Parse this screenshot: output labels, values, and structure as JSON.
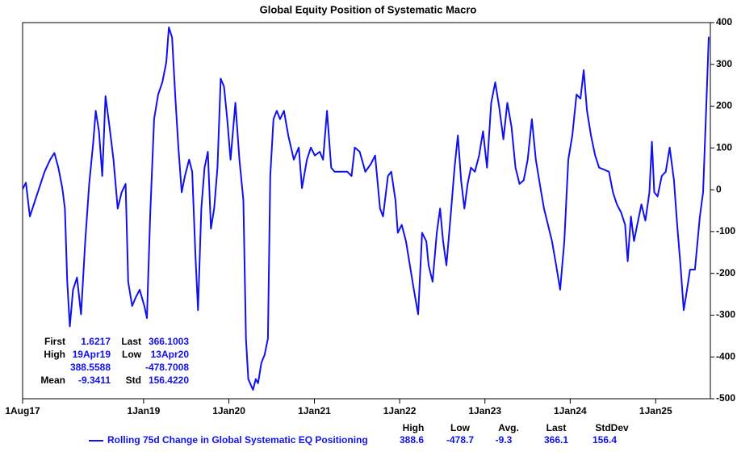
{
  "chart_data": {
    "type": "line",
    "title": "Global Equity Position of Systematic Macro",
    "x": [
      "2017-08-01",
      "2017-08-15",
      "2017-09-01",
      "2017-09-29",
      "2017-11-03",
      "2017-11-27",
      "2017-12-15",
      "2018-01-01",
      "2018-01-18",
      "2018-01-29",
      "2018-02-08",
      "2018-02-19",
      "2018-03-05",
      "2018-03-22",
      "2018-04-08",
      "2018-04-26",
      "2018-05-13",
      "2018-05-30",
      "2018-06-10",
      "2018-06-24",
      "2018-07-08",
      "2018-07-22",
      "2018-08-08",
      "2018-08-25",
      "2018-09-12",
      "2018-09-29",
      "2018-10-16",
      "2018-10-27",
      "2018-11-13",
      "2018-11-27",
      "2018-12-15",
      "2019-01-04",
      "2019-01-15",
      "2019-01-29",
      "2019-02-15",
      "2019-03-04",
      "2019-03-22",
      "2019-04-08",
      "2019-04-19",
      "2019-05-03",
      "2019-05-16",
      "2019-05-30",
      "2019-06-13",
      "2019-06-27",
      "2019-07-15",
      "2019-07-28",
      "2019-08-11",
      "2019-08-22",
      "2019-09-05",
      "2019-09-19",
      "2019-10-03",
      "2019-10-16",
      "2019-10-30",
      "2019-11-13",
      "2019-11-27",
      "2019-12-11",
      "2019-12-25",
      "2020-01-08",
      "2020-01-29",
      "2020-02-15",
      "2020-03-03",
      "2020-03-14",
      "2020-03-24",
      "2020-04-13",
      "2020-04-25",
      "2020-05-05",
      "2020-05-19",
      "2020-06-02",
      "2020-06-16",
      "2020-06-26",
      "2020-07-10",
      "2020-07-24",
      "2020-08-07",
      "2020-08-24",
      "2020-09-11",
      "2020-10-05",
      "2020-10-26",
      "2020-11-09",
      "2020-11-30",
      "2020-12-17",
      "2021-01-03",
      "2021-01-24",
      "2021-02-07",
      "2021-02-24",
      "2021-03-14",
      "2021-03-28",
      "2021-04-25",
      "2021-05-22",
      "2021-06-09",
      "2021-06-23",
      "2021-07-14",
      "2021-08-07",
      "2021-08-31",
      "2021-09-18",
      "2021-10-09",
      "2021-10-22",
      "2021-11-12",
      "2021-11-26",
      "2021-12-14",
      "2021-12-24",
      "2022-01-10",
      "2022-01-28",
      "2022-02-14",
      "2022-03-03",
      "2022-03-21",
      "2022-04-07",
      "2022-04-25",
      "2022-05-05",
      "2022-05-22",
      "2022-06-09",
      "2022-06-23",
      "2022-07-06",
      "2022-07-20",
      "2022-08-07",
      "2022-08-24",
      "2022-09-07",
      "2022-09-21",
      "2022-10-05",
      "2022-10-19",
      "2022-11-02",
      "2022-11-19",
      "2022-12-07",
      "2022-12-24",
      "2023-01-10",
      "2023-01-28",
      "2023-02-14",
      "2023-03-03",
      "2023-03-21",
      "2023-04-07",
      "2023-04-25",
      "2023-05-12",
      "2023-05-29",
      "2023-06-16",
      "2023-07-03",
      "2023-07-21",
      "2023-08-07",
      "2023-08-24",
      "2023-09-11",
      "2023-09-28",
      "2023-10-15",
      "2023-11-02",
      "2023-11-19",
      "2023-12-07",
      "2023-12-24",
      "2024-01-10",
      "2024-01-28",
      "2024-02-14",
      "2024-02-28",
      "2024-03-13",
      "2024-03-30",
      "2024-04-17",
      "2024-05-04",
      "2024-05-21",
      "2024-06-15",
      "2024-07-02",
      "2024-07-19",
      "2024-08-06",
      "2024-08-23",
      "2024-09-03",
      "2024-09-17",
      "2024-09-30",
      "2024-10-14",
      "2024-11-01",
      "2024-11-18",
      "2024-12-05",
      "2024-12-16",
      "2024-12-26",
      "2025-01-09",
      "2025-01-27",
      "2025-02-13",
      "2025-03-02",
      "2025-03-20",
      "2025-04-03",
      "2025-04-17",
      "2025-05-01",
      "2025-05-15",
      "2025-05-28",
      "2025-06-18",
      "2025-07-09",
      "2025-07-23",
      "2025-08-06",
      "2025-08-16"
    ],
    "series": [
      {
        "name": "Rolling 75d Change in Global Systematic EQ Positioning",
        "color": "#1010f0",
        "values": [
          1.6217,
          17,
          -64,
          -16,
          43,
          72,
          88,
          53,
          4,
          -45,
          -220,
          -327,
          -239,
          -210,
          -298,
          -123,
          14,
          111,
          189,
          140,
          33,
          224,
          150,
          72,
          -45,
          -6,
          14,
          -220,
          -278,
          -259,
          -239,
          -278,
          -307,
          -64,
          169,
          228,
          257,
          305,
          388.5588,
          364,
          228,
          101,
          -6,
          33,
          72,
          43,
          -161,
          -288,
          -45,
          53,
          91,
          -93,
          -45,
          53,
          266,
          247,
          169,
          72,
          208,
          72,
          -25,
          -356,
          -453,
          -478.7008,
          -453,
          -463,
          -414,
          -395,
          -356,
          33,
          169,
          189,
          169,
          189,
          130,
          72,
          101,
          4,
          72,
          101,
          82,
          91,
          72,
          189,
          53,
          43,
          43,
          43,
          33,
          101,
          91,
          43,
          62,
          82,
          -45,
          -64,
          33,
          43,
          -25,
          -103,
          -84,
          -123,
          -181,
          -239,
          -298,
          -103,
          -123,
          -181,
          -220,
          -103,
          -45,
          -123,
          -181,
          -64,
          53,
          130,
          23,
          -45,
          14,
          53,
          43,
          82,
          140,
          53,
          208,
          257,
          198,
          121,
          208,
          150,
          53,
          14,
          23,
          72,
          169,
          72,
          14,
          -45,
          -84,
          -123,
          -181,
          -239,
          -123,
          72,
          130,
          228,
          218,
          286,
          189,
          130,
          82,
          53,
          49,
          43,
          -6,
          -35,
          -54,
          -84,
          -171,
          -64,
          -123,
          -84,
          -35,
          -74,
          -6,
          115,
          -6,
          -16,
          33,
          43,
          101,
          23,
          -84,
          -181,
          -288,
          -239,
          -191,
          -191,
          -64,
          -6,
          208,
          366.1003
        ]
      }
    ],
    "xlim": [
      "2017-08-01",
      "2025-08-23"
    ],
    "xticks": [
      {
        "value": "2017-08-01",
        "label": "1Aug17"
      },
      {
        "value": "2019-01-01",
        "label": "1Jan19"
      },
      {
        "value": "2020-01-01",
        "label": "1Jan20"
      },
      {
        "value": "2021-01-01",
        "label": "1Jan21"
      },
      {
        "value": "2022-01-01",
        "label": "1Jan22"
      },
      {
        "value": "2023-01-01",
        "label": "1Jan23"
      },
      {
        "value": "2024-01-01",
        "label": "1Jan24"
      },
      {
        "value": "2025-01-01",
        "label": "1Jan25"
      }
    ],
    "ylim": [
      -500,
      400
    ],
    "yticks": [
      -500,
      -400,
      -300,
      -200,
      -100,
      0,
      100,
      200,
      300,
      400
    ],
    "stats": [
      {
        "label": "First",
        "value": "1.6217"
      },
      {
        "label": "Last",
        "value": "366.1003"
      },
      {
        "label": "High",
        "date": "19Apr19",
        "value": "388.5588"
      },
      {
        "label": "Low",
        "date": "13Apr20",
        "value": "-478.7008"
      },
      {
        "label": "Mean",
        "value": "-9.3411"
      },
      {
        "label": "Std",
        "value": "156.4220"
      }
    ],
    "legend_columns": [
      "High",
      "Low",
      "Avg.",
      "Last",
      "StdDev"
    ],
    "legend_values": [
      388.6,
      -478.7,
      -9.3,
      366.1,
      156.4
    ]
  }
}
